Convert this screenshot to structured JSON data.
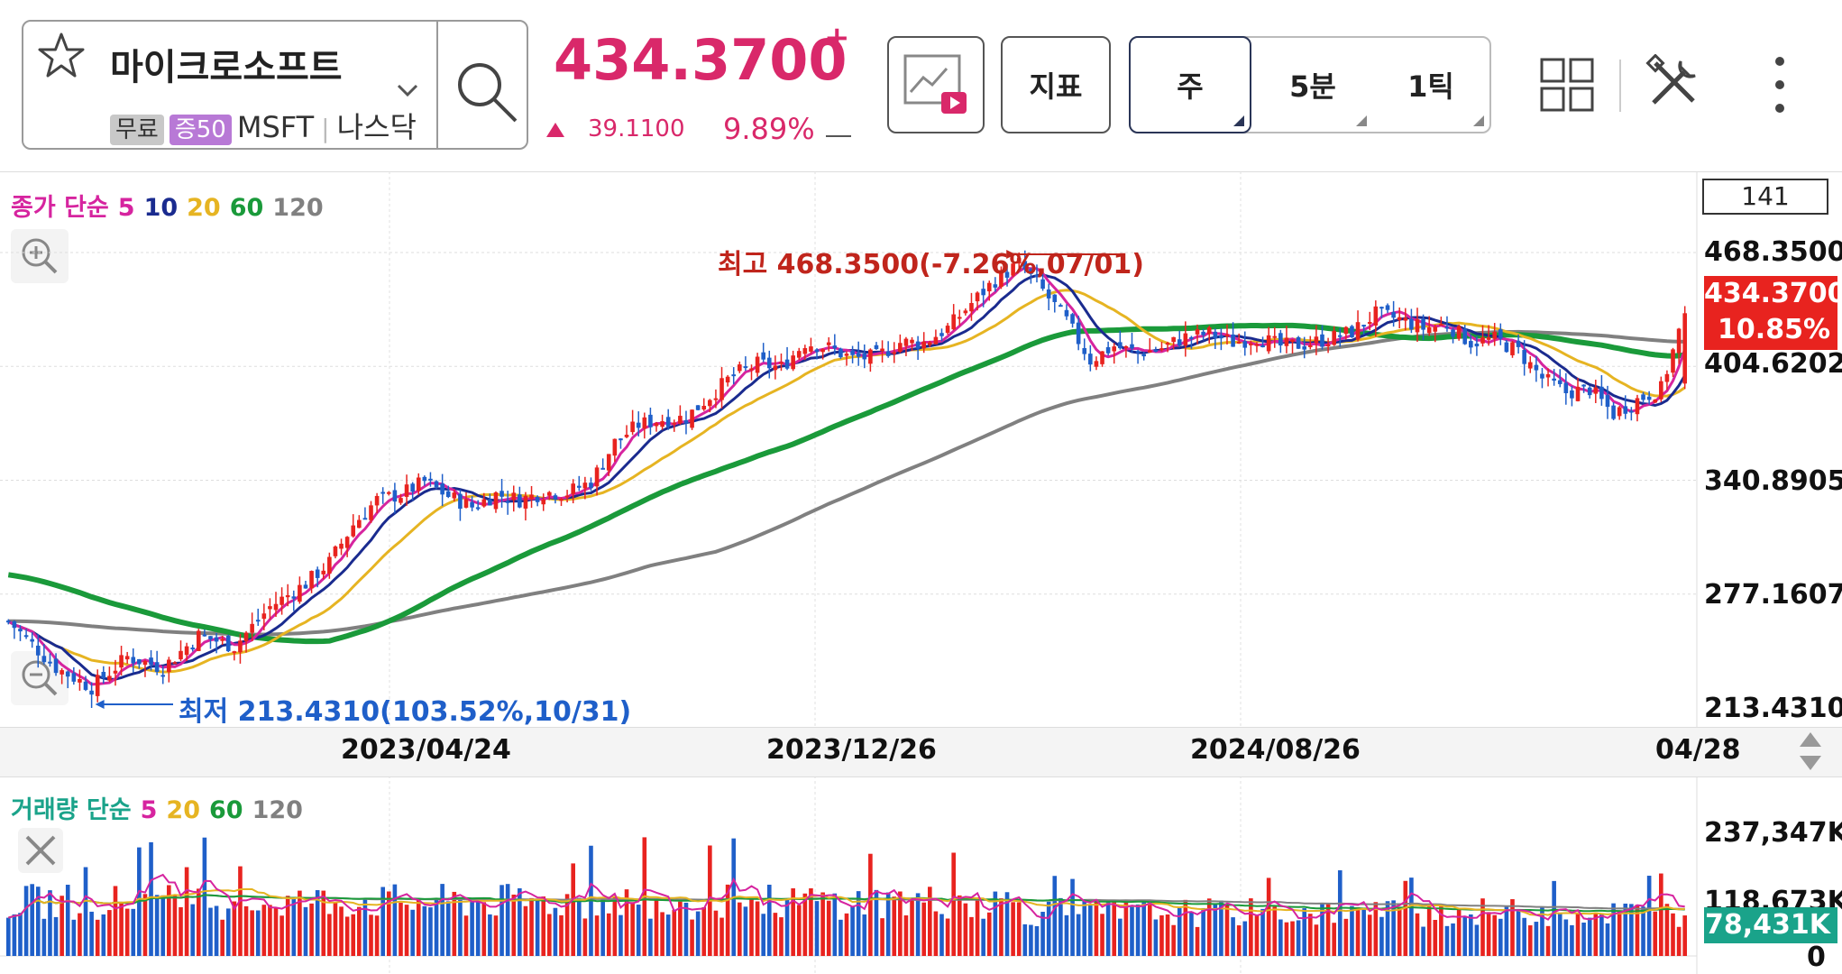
{
  "header": {
    "stock_name": "마이크로소프트",
    "tags": [
      "무료",
      "증50"
    ],
    "ticker": "MSFT",
    "exchange": "나스닥",
    "price": "434.3700",
    "price_badge": "+",
    "change": "39.1100",
    "change_pct": "9.89%",
    "indicator_label": "지표",
    "period_tabs": [
      "주",
      "5분",
      "1틱"
    ],
    "active_period": "주"
  },
  "price_chart": {
    "legend": {
      "prefix": "종가 단순",
      "ma": [
        {
          "label": "5",
          "color": "#d6249f"
        },
        {
          "label": "10",
          "color": "#1a2b8f"
        },
        {
          "label": "20",
          "color": "#e6b422"
        },
        {
          "label": "60",
          "color": "#1a9a3a"
        },
        {
          "label": "120",
          "color": "#808080"
        }
      ]
    },
    "count_box": "141",
    "y_ticks": [
      "468.3500",
      "404.6202",
      "340.8905",
      "277.1607",
      "213.4310"
    ],
    "current_price_label": "434.3700",
    "current_pct_label": "10.85%",
    "high_annotation": "최고 468.3500(-7.26%,07/01)",
    "low_annotation": "최저 213.4310(103.52%,10/31)",
    "x_ticks": [
      "2023/04/24",
      "2023/12/26",
      "2024/08/26",
      "04/28"
    ]
  },
  "volume_chart": {
    "legend": {
      "prefix": "거래량 단순",
      "ma": [
        {
          "label": "5",
          "color": "#d6249f"
        },
        {
          "label": "20",
          "color": "#e6b422"
        },
        {
          "label": "60",
          "color": "#1a9a3a"
        },
        {
          "label": "120",
          "color": "#808080"
        }
      ]
    },
    "y_ticks": [
      "237,347K",
      "118,673K",
      "0"
    ],
    "current_label": "78,431K"
  },
  "colors": {
    "up": "#e8231f",
    "down": "#1f5fc9",
    "price_pink": "#d9286a",
    "blue_text": "#1f5fc9"
  },
  "chart_data": {
    "type": "candlestick",
    "title": "",
    "xlabel": "",
    "ylabel": "",
    "ylim": [
      213.431,
      468.35
    ],
    "x_tick_labels": [
      "2023/04/24",
      "2023/12/26",
      "2024/08/26",
      "04/28"
    ],
    "close_path": [
      {
        "w": 0,
        "v": 262
      },
      {
        "w": 8,
        "v": 236
      },
      {
        "w": 14,
        "v": 225
      },
      {
        "w": 20,
        "v": 242
      },
      {
        "w": 26,
        "v": 236
      },
      {
        "w": 32,
        "v": 254
      },
      {
        "w": 38,
        "v": 248
      },
      {
        "w": 44,
        "v": 270
      },
      {
        "w": 50,
        "v": 283
      },
      {
        "w": 54,
        "v": 295
      },
      {
        "w": 58,
        "v": 316
      },
      {
        "w": 62,
        "v": 330
      },
      {
        "w": 66,
        "v": 333
      },
      {
        "w": 70,
        "v": 340
      },
      {
        "w": 74,
        "v": 332
      },
      {
        "w": 78,
        "v": 326
      },
      {
        "w": 82,
        "v": 333
      },
      {
        "w": 86,
        "v": 330
      },
      {
        "w": 90,
        "v": 334
      },
      {
        "w": 94,
        "v": 334
      },
      {
        "w": 98,
        "v": 340
      },
      {
        "w": 102,
        "v": 362
      },
      {
        "w": 106,
        "v": 372
      },
      {
        "w": 110,
        "v": 375
      },
      {
        "w": 114,
        "v": 376
      },
      {
        "w": 118,
        "v": 388
      },
      {
        "w": 122,
        "v": 400
      },
      {
        "w": 126,
        "v": 406
      },
      {
        "w": 130,
        "v": 404
      },
      {
        "w": 134,
        "v": 418
      },
      {
        "w": 138,
        "v": 415
      },
      {
        "w": 142,
        "v": 409
      },
      {
        "w": 146,
        "v": 410
      },
      {
        "w": 150,
        "v": 418
      },
      {
        "w": 154,
        "v": 418
      },
      {
        "w": 158,
        "v": 426
      },
      {
        "w": 162,
        "v": 440
      },
      {
        "w": 166,
        "v": 453
      },
      {
        "w": 170,
        "v": 462
      },
      {
        "w": 174,
        "v": 447
      },
      {
        "w": 178,
        "v": 430
      },
      {
        "w": 182,
        "v": 408
      },
      {
        "w": 186,
        "v": 416
      },
      {
        "w": 190,
        "v": 412
      },
      {
        "w": 194,
        "v": 415
      },
      {
        "w": 198,
        "v": 421
      },
      {
        "w": 202,
        "v": 423
      },
      {
        "w": 206,
        "v": 418
      },
      {
        "w": 210,
        "v": 421
      },
      {
        "w": 214,
        "v": 416
      },
      {
        "w": 218,
        "v": 417
      },
      {
        "w": 222,
        "v": 420
      },
      {
        "w": 226,
        "v": 424
      },
      {
        "w": 230,
        "v": 434
      },
      {
        "w": 234,
        "v": 431
      },
      {
        "w": 238,
        "v": 426
      },
      {
        "w": 242,
        "v": 428
      },
      {
        "w": 246,
        "v": 418
      },
      {
        "w": 250,
        "v": 420
      },
      {
        "w": 254,
        "v": 413
      },
      {
        "w": 258,
        "v": 398
      },
      {
        "w": 262,
        "v": 390
      },
      {
        "w": 266,
        "v": 392
      },
      {
        "w": 270,
        "v": 378
      },
      {
        "w": 274,
        "v": 386
      },
      {
        "w": 278,
        "v": 392
      },
      {
        "w": 282,
        "v": 434.37
      }
    ],
    "annotations": [
      {
        "label": "high",
        "value": 468.35,
        "date": "07/01"
      },
      {
        "label": "low",
        "value": 213.431,
        "date": "10/31"
      }
    ],
    "moving_averages": [
      "5",
      "10",
      "20",
      "60",
      "120"
    ],
    "volume": {
      "ylim": [
        0,
        237347
      ],
      "last": 78431,
      "unit": "K"
    }
  }
}
